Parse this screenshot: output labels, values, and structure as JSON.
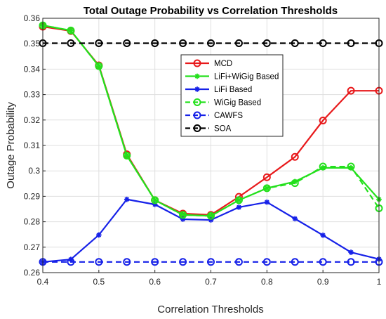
{
  "chart_data": {
    "type": "line",
    "title": "Total Outage Probability vs Correlation Thresholds",
    "xlabel": "Correlation Thresholds",
    "ylabel": "Outage Probability",
    "xlim": [
      0.4,
      1.0
    ],
    "ylim": [
      0.26,
      0.36
    ],
    "grid": true,
    "legend_position": "upper-center",
    "x": [
      0.4,
      0.45,
      0.5,
      0.55,
      0.6,
      0.65,
      0.7,
      0.75,
      0.8,
      0.85,
      0.9,
      0.95,
      1.0
    ],
    "xticks": [
      "0.4",
      "0.5",
      "0.6",
      "0.7",
      "0.8",
      "0.9",
      "1"
    ],
    "xtick_values": [
      0.4,
      0.5,
      0.6,
      0.7,
      0.8,
      0.9,
      1.0
    ],
    "yticks": [
      "0.26",
      "0.27",
      "0.28",
      "0.29",
      "0.3",
      "0.31",
      "0.32",
      "0.33",
      "0.34",
      "0.35",
      "0.36"
    ],
    "ytick_values": [
      0.26,
      0.27,
      0.28,
      0.29,
      0.3,
      0.31,
      0.32,
      0.33,
      0.34,
      0.35,
      0.36
    ],
    "series": [
      {
        "name": "MCD",
        "color": "#e8191b",
        "line_style": "solid",
        "marker": "circle",
        "values": [
          0.3567,
          0.355,
          0.3415,
          0.3065,
          0.2885,
          0.2832,
          0.2827,
          0.2898,
          0.2975,
          0.3055,
          0.3198,
          0.3315,
          0.3315
        ]
      },
      {
        "name": "LiFi+WiGig Based",
        "color": "#23e01c",
        "line_style": "solid",
        "marker": "asterisk",
        "values": [
          0.3572,
          0.3552,
          0.3412,
          0.306,
          0.2885,
          0.2827,
          0.2823,
          0.2885,
          0.2932,
          0.2958,
          0.3012,
          0.3012,
          0.2888
        ]
      },
      {
        "name": "LiFi Based",
        "color": "#1621e8",
        "line_style": "solid",
        "marker": "asterisk",
        "values": [
          0.2642,
          0.2652,
          0.2748,
          0.2888,
          0.2868,
          0.281,
          0.2807,
          0.2857,
          0.2877,
          0.2812,
          0.2747,
          0.268,
          0.2653
        ]
      },
      {
        "name": "WiGig Based",
        "color": "#23e01c",
        "line_style": "dashed",
        "marker": "circle",
        "values": [
          0.3572,
          0.3552,
          0.3412,
          0.306,
          0.2885,
          0.2827,
          0.2823,
          0.2885,
          0.2932,
          0.2952,
          0.3017,
          0.3017,
          0.2853
        ]
      },
      {
        "name": "CAWFS",
        "color": "#1621e8",
        "line_style": "dashed",
        "marker": "circle",
        "values": [
          0.2642,
          0.2642,
          0.2642,
          0.2642,
          0.2642,
          0.2642,
          0.2642,
          0.2642,
          0.2642,
          0.2642,
          0.2642,
          0.2642,
          0.2642
        ]
      },
      {
        "name": "SOA",
        "color": "#000000",
        "line_style": "dashed",
        "marker": "circle",
        "values": [
          0.3502,
          0.3502,
          0.3502,
          0.3502,
          0.3502,
          0.3502,
          0.3502,
          0.3502,
          0.3502,
          0.3502,
          0.3502,
          0.3502,
          0.3502
        ]
      }
    ]
  }
}
